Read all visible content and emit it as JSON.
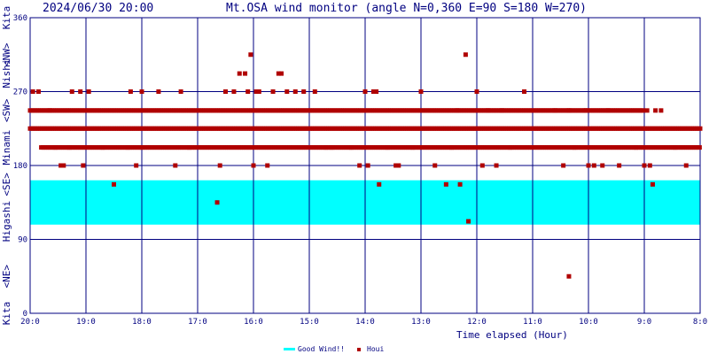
{
  "header": {
    "timestamp": "2024/06/30 20:00",
    "title": "Mt.OSA wind monitor (angle N=0,360 E=90 S=180 W=270)"
  },
  "side_labels": [
    "Kita",
    "<NW>",
    "Nishi",
    "<SW>",
    "Minami",
    "<SE>",
    "Higashi",
    "<NE>",
    "Kita"
  ],
  "legend": {
    "band_label": "Good Wind!!",
    "points_label": "Houi"
  },
  "colors": {
    "axis": "#000080",
    "points": "#b00000",
    "band": "#00ffff",
    "background": "#ffffff"
  },
  "chart_data": {
    "type": "scatter",
    "title": "Mt.OSA wind monitor (angle N=0,360 E=90 S=180 W=270)",
    "subtitle": "2024/06/30 20:00",
    "xlabel": "Time elapsed (Hour)",
    "ylabel": "",
    "x_tick_labels": [
      "20:0",
      "19:0",
      "18:0",
      "17:0",
      "16:0",
      "15:0",
      "14:0",
      "13:0",
      "12:0",
      "11:0",
      "10:0",
      "9:0",
      "8:0"
    ],
    "xlim": [
      0,
      12
    ],
    "x_direction": "hours before 2024/06/30 20:00 (left = 20:00, right = 8:00)",
    "ylim": [
      0,
      360
    ],
    "y_ticks": [
      0,
      90,
      180,
      270,
      360
    ],
    "grid": true,
    "good_wind_band": {
      "label": "Good Wind!!",
      "range_deg": [
        108,
        162
      ]
    },
    "series": [
      {
        "name": "Houi",
        "marker": "square",
        "bands": [
          {
            "y": 225,
            "x_range": [
              0.0,
              12.0
            ]
          },
          {
            "y": 247,
            "x_range": [
              0.0,
              11.0
            ]
          },
          {
            "y": 202,
            "x_range": [
              0.2,
              12.0
            ]
          }
        ],
        "points": [
          [
            0.05,
            270
          ],
          [
            0.15,
            270
          ],
          [
            0.35,
            247
          ],
          [
            0.45,
            202
          ],
          [
            0.55,
            180
          ],
          [
            0.6,
            180
          ],
          [
            0.7,
            202
          ],
          [
            0.75,
            270
          ],
          [
            0.9,
            270
          ],
          [
            0.95,
            180
          ],
          [
            1.05,
            270
          ],
          [
            1.3,
            202
          ],
          [
            1.5,
            157
          ],
          [
            1.75,
            202
          ],
          [
            1.8,
            270
          ],
          [
            1.9,
            180
          ],
          [
            2.0,
            202
          ],
          [
            2.0,
            270
          ],
          [
            2.3,
            270
          ],
          [
            2.6,
            180
          ],
          [
            2.7,
            270
          ],
          [
            2.85,
            202
          ],
          [
            3.35,
            135
          ],
          [
            3.4,
            180
          ],
          [
            3.5,
            270
          ],
          [
            3.65,
            270
          ],
          [
            3.75,
            292
          ],
          [
            3.85,
            292
          ],
          [
            3.9,
            270
          ],
          [
            3.95,
            315
          ],
          [
            4.0,
            180
          ],
          [
            4.05,
            270
          ],
          [
            4.1,
            270
          ],
          [
            4.25,
            180
          ],
          [
            4.35,
            270
          ],
          [
            4.45,
            292
          ],
          [
            4.5,
            292
          ],
          [
            4.6,
            270
          ],
          [
            4.75,
            270
          ],
          [
            4.9,
            270
          ],
          [
            5.1,
            270
          ],
          [
            5.3,
            202
          ],
          [
            5.4,
            202
          ],
          [
            5.75,
            202
          ],
          [
            5.9,
            180
          ],
          [
            6.0,
            270
          ],
          [
            6.05,
            180
          ],
          [
            6.15,
            270
          ],
          [
            6.2,
            270
          ],
          [
            6.25,
            157
          ],
          [
            6.4,
            202
          ],
          [
            6.55,
            180
          ],
          [
            6.6,
            180
          ],
          [
            6.85,
            202
          ],
          [
            7.0,
            270
          ],
          [
            7.25,
            180
          ],
          [
            7.45,
            157
          ],
          [
            7.55,
            202
          ],
          [
            7.65,
            247
          ],
          [
            7.7,
            157
          ],
          [
            7.8,
            315
          ],
          [
            7.85,
            112
          ],
          [
            8.0,
            270
          ],
          [
            8.1,
            180
          ],
          [
            8.2,
            247
          ],
          [
            8.35,
            180
          ],
          [
            8.45,
            247
          ],
          [
            8.6,
            202
          ],
          [
            8.85,
            270
          ],
          [
            9.4,
            247
          ],
          [
            9.55,
            180
          ],
          [
            9.65,
            247
          ],
          [
            9.75,
            202
          ],
          [
            9.95,
            247
          ],
          [
            10.0,
            180
          ],
          [
            10.1,
            180
          ],
          [
            10.25,
            180
          ],
          [
            10.35,
            247
          ],
          [
            10.55,
            180
          ],
          [
            10.85,
            202
          ],
          [
            11.0,
            180
          ],
          [
            11.05,
            247
          ],
          [
            11.1,
            180
          ],
          [
            11.15,
            157
          ],
          [
            11.2,
            247
          ],
          [
            11.3,
            247
          ],
          [
            11.55,
            202
          ],
          [
            11.75,
            180
          ],
          [
            9.65,
            45
          ]
        ]
      }
    ]
  }
}
